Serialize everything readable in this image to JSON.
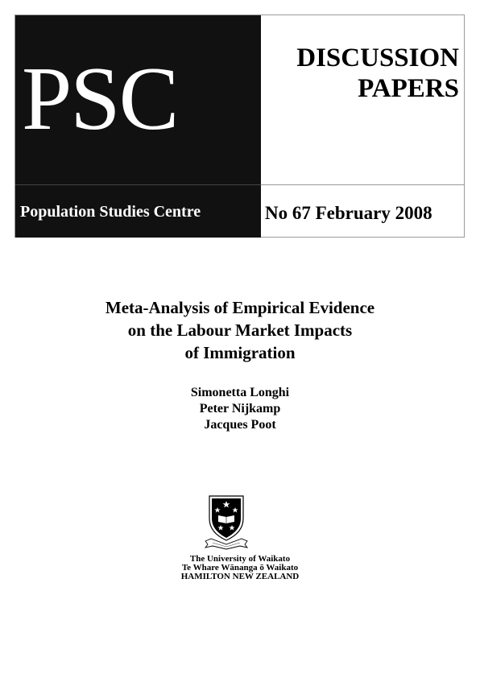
{
  "header": {
    "logo": "PSC",
    "organization": "Population Studies Centre",
    "series_line1": "DISCUSSION",
    "series_line2": "PAPERS",
    "issue": "No 67 February 2008"
  },
  "paper": {
    "title_lines": [
      "Meta-Analysis of Empirical Evidence",
      "on the Labour Market Impacts",
      "of Immigration"
    ],
    "authors": [
      "Simonetta Longhi",
      "Peter Nijkamp",
      "Jacques Poot"
    ]
  },
  "institution": {
    "crest_motto": "ORDO ESTO SUCCESSU",
    "lines": [
      "The University of Waikato",
      "Te Whare Wānanga ō Waikato",
      "HAMILTON  NEW ZEALAND"
    ]
  },
  "colors": {
    "logo_background": "#111111",
    "border": "#9a9a9a"
  }
}
